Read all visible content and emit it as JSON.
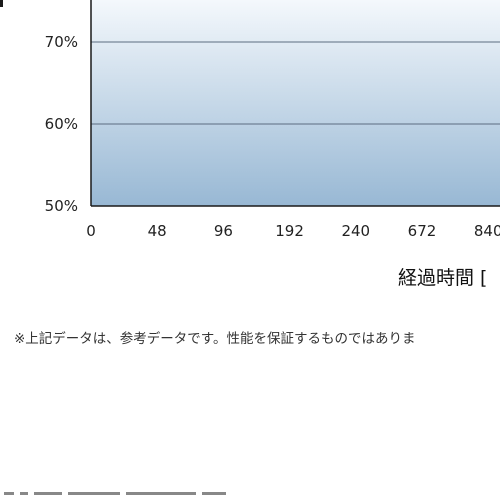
{
  "chart_data": {
    "type": "area",
    "title": "",
    "xlabel": "経過時間 [",
    "ylabel": "",
    "x_categories": [
      "0",
      "48",
      "96",
      "192",
      "240",
      "672",
      "840"
    ],
    "y_ticks": [
      "50%",
      "60%",
      "70%"
    ],
    "ylim": [
      50,
      80
    ],
    "grid": true,
    "legend": "none",
    "series": []
  },
  "note": "※上記データは、参考データです。性能を保証するものではありま",
  "colors": {
    "area_top": "#f4f8fc",
    "area_bottom": "#98b8d4",
    "gridline": "#5c6c80",
    "axis": "#1a1a1a",
    "text": "#222222"
  }
}
